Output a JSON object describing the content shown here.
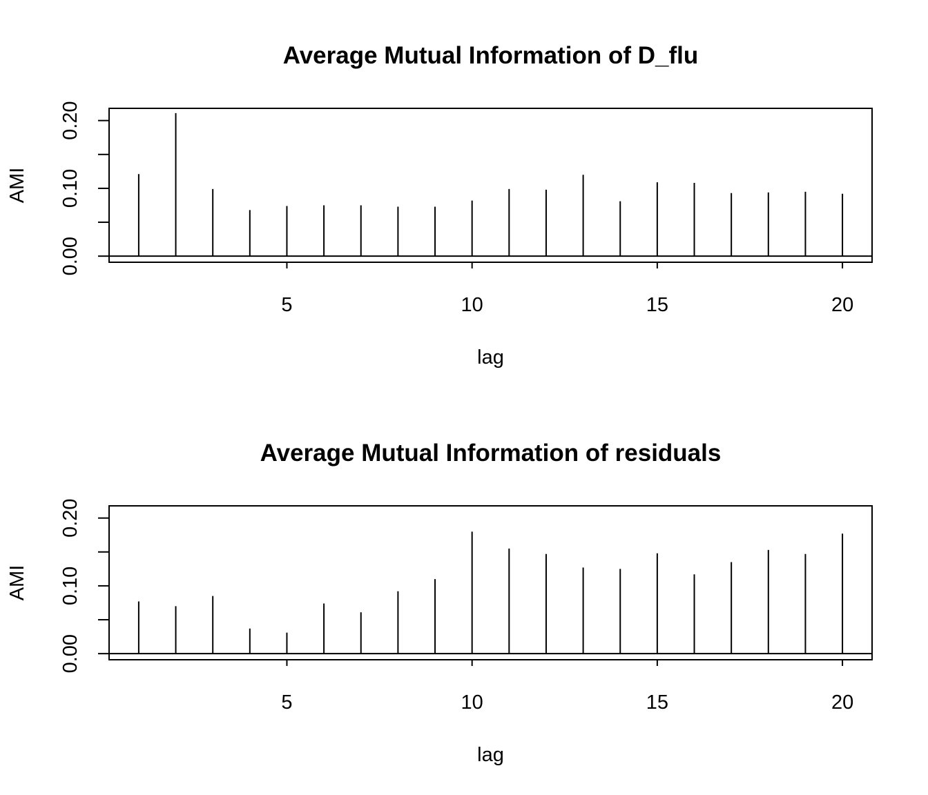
{
  "chart_data": [
    {
      "type": "bar",
      "style": "vertical spikes (type='h')",
      "title": "Average Mutual Information of D_flu",
      "xlabel": "lag",
      "ylabel": "AMI",
      "x": [
        1,
        2,
        3,
        4,
        5,
        6,
        7,
        8,
        9,
        10,
        11,
        12,
        13,
        14,
        15,
        16,
        17,
        18,
        19,
        20
      ],
      "values": [
        0.121,
        0.211,
        0.099,
        0.068,
        0.074,
        0.075,
        0.075,
        0.073,
        0.073,
        0.082,
        0.099,
        0.098,
        0.12,
        0.081,
        0.109,
        0.108,
        0.093,
        0.094,
        0.095,
        0.092
      ],
      "xlim": [
        0.2,
        20.8
      ],
      "ylim": [
        -0.009,
        0.218
      ],
      "x_ticks": [
        "5",
        "10",
        "15",
        "20"
      ],
      "x_tick_values": [
        5,
        10,
        15,
        20
      ],
      "y_ticks": [
        "0.00",
        "0.10",
        "0.20"
      ],
      "y_tick_values": [
        0.0,
        0.05,
        0.1,
        0.15,
        0.2
      ],
      "y_tick_labels_shown": [
        0.0,
        0.1,
        0.2
      ],
      "grid": false,
      "zero_line": true
    },
    {
      "type": "bar",
      "style": "vertical spikes (type='h')",
      "title": "Average Mutual Information of residuals",
      "xlabel": "lag",
      "ylabel": "AMI",
      "x": [
        1,
        2,
        3,
        4,
        5,
        6,
        7,
        8,
        9,
        10,
        11,
        12,
        13,
        14,
        15,
        16,
        17,
        18,
        19,
        20
      ],
      "values": [
        0.077,
        0.07,
        0.085,
        0.037,
        0.031,
        0.074,
        0.061,
        0.092,
        0.11,
        0.18,
        0.155,
        0.147,
        0.127,
        0.125,
        0.148,
        0.117,
        0.135,
        0.153,
        0.147,
        0.177
      ],
      "xlim": [
        0.2,
        20.8
      ],
      "ylim": [
        -0.009,
        0.218
      ],
      "x_ticks": [
        "5",
        "10",
        "15",
        "20"
      ],
      "x_tick_values": [
        5,
        10,
        15,
        20
      ],
      "y_ticks": [
        "0.00",
        "0.10",
        "0.20"
      ],
      "y_tick_values": [
        0.0,
        0.05,
        0.1,
        0.15,
        0.2
      ],
      "y_tick_labels_shown": [
        0.0,
        0.1,
        0.2
      ],
      "grid": false,
      "zero_line": true
    }
  ]
}
